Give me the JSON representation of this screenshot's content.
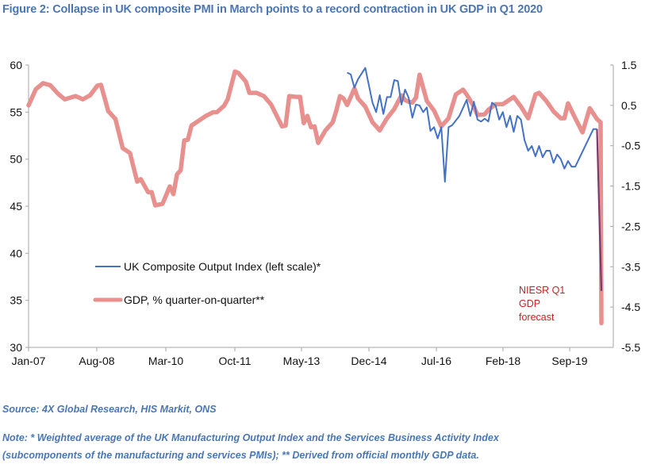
{
  "title": "Figure 2: Collapse in UK composite PMI in March points to a record contraction in UK GDP in Q1 2020",
  "source": "Source: 4X Global Research, HIS Markit, ONS",
  "note_line1": "Note: * Weighted average of the UK Manufacturing Output Index and the Services Business Activity Index",
  "note_line2": "(subcomponents of the manufacturing and services PMIs); ** Derived from official monthly GDP data.",
  "colors": {
    "pmi": "#4472c4",
    "gdp": "#e8908e",
    "overlap": "#7a3a6e",
    "annotation": "#cc1f1f",
    "text_blue": "#4a76b4",
    "axis": "#a6a6a6"
  },
  "chart_data": {
    "type": "line",
    "title": "Figure 2: Collapse in UK composite PMI in March points to a record contraction in UK GDP in Q1 2020",
    "xlabel": "",
    "ylabel_left": "",
    "ylabel_right": "",
    "x_start": "Jan-07",
    "x_end": "Mar-20",
    "x_ticks": [
      "Jan-07",
      "Aug-08",
      "Mar-10",
      "Oct-11",
      "May-13",
      "Dec-14",
      "Jul-16",
      "Feb-18",
      "Sep-19"
    ],
    "x_tick_months": [
      0,
      19,
      38,
      57,
      76,
      95,
      114,
      133,
      152
    ],
    "x_month_range": [
      0,
      160
    ],
    "ylim_left": [
      30,
      60
    ],
    "yticks_left": [
      30,
      35,
      40,
      45,
      50,
      55,
      60
    ],
    "ylim_right": [
      -5.5,
      1.5
    ],
    "yticks_right": [
      -5.5,
      -4.5,
      -3.5,
      -2.5,
      -1.5,
      -0.5,
      0.5,
      1.5
    ],
    "yticks_right_labels": [
      "-5.5",
      "-4.5",
      "-3.5",
      "-2.5",
      "-1.5",
      "-0.5",
      "0.5",
      "1.5"
    ],
    "legend_position": "lower-left",
    "annotation": [
      "NIESR Q1",
      "GDP",
      "forecast"
    ],
    "series": [
      {
        "name": "UK Composite Output Index (left scale)*",
        "axis": "left",
        "months": [
          88,
          89,
          90,
          91,
          93,
          95,
          96,
          97,
          98,
          99,
          100,
          101,
          102,
          103,
          104,
          105,
          106,
          107,
          108,
          109,
          110,
          111,
          112,
          113,
          114,
          115,
          116,
          117,
          119,
          121,
          122,
          123,
          124,
          125,
          126,
          127,
          128,
          129,
          130,
          131,
          132,
          133,
          134,
          135,
          136,
          137,
          138,
          139,
          140,
          141,
          142,
          143,
          144,
          145,
          146,
          147,
          148,
          149,
          150,
          151,
          156,
          157,
          158
        ],
        "values": [
          59.2,
          59.0,
          57.6,
          58.5,
          59.7,
          56.0,
          55.0,
          56.8,
          54.8,
          56.6,
          56.6,
          58.4,
          58.3,
          55.8,
          57.4,
          56.5,
          54.4,
          55.8,
          55.7,
          55.0,
          55.5,
          53.0,
          53.4,
          52.2,
          53.4,
          47.6,
          53.4,
          53.6,
          54.6,
          56.3,
          54.6,
          56.1,
          54.2,
          54.0,
          54.3,
          54.0,
          56.0,
          55.7,
          54.2,
          55.0,
          53.4,
          54.6,
          52.9,
          54.6,
          54.2,
          52.0,
          50.9,
          51.4,
          50.3,
          51.4,
          50.2,
          50.9,
          50.9,
          49.6,
          50.5,
          50.0,
          49.0,
          49.8,
          49.2,
          49.2,
          53.2,
          53.2,
          36.0
        ]
      },
      {
        "name": "GDP, % quarter-on-quarter**",
        "axis": "right",
        "months": [
          0,
          2,
          4,
          6,
          8,
          10,
          13,
          15,
          17,
          19,
          20,
          22,
          24,
          26,
          28,
          30,
          31,
          33,
          34,
          35,
          37,
          39,
          40,
          41,
          42,
          43,
          44,
          45,
          47,
          49,
          51,
          52,
          54,
          55,
          57,
          58,
          60,
          61,
          63,
          65,
          67,
          69,
          70,
          71,
          72,
          74,
          75,
          76,
          77,
          78,
          79,
          80,
          82,
          84,
          85,
          86,
          87,
          88,
          89,
          90,
          91,
          93,
          95,
          97,
          99,
          101,
          103,
          104,
          105,
          106,
          107,
          108,
          110,
          112,
          114,
          116,
          118,
          120,
          121,
          123,
          124,
          126,
          127,
          129,
          131,
          132,
          134,
          136,
          138,
          140,
          141,
          143,
          145,
          147,
          148,
          149,
          151,
          153,
          155,
          157,
          158
        ],
        "values": [
          0.5,
          0.9,
          1.05,
          1.0,
          0.8,
          0.65,
          0.73,
          0.65,
          0.75,
          0.99,
          1.01,
          0.36,
          0.16,
          -0.56,
          -0.68,
          -1.39,
          -1.33,
          -1.65,
          -1.65,
          -1.98,
          -1.94,
          -1.51,
          -1.7,
          -1.21,
          -1.11,
          -0.37,
          -0.35,
          0.0,
          0.12,
          0.24,
          0.33,
          0.33,
          0.49,
          0.65,
          1.34,
          1.3,
          1.09,
          0.81,
          0.81,
          0.73,
          0.52,
          0.16,
          -0.02,
          0.0,
          0.73,
          0.71,
          0.71,
          0.06,
          0.24,
          -0.04,
          -0.02,
          -0.43,
          -0.12,
          0.08,
          0.37,
          0.73,
          0.67,
          0.51,
          0.71,
          0.92,
          0.67,
          0.47,
          0.08,
          -0.12,
          0.18,
          0.41,
          0.75,
          0.63,
          0.59,
          0.57,
          0.69,
          1.26,
          0.61,
          0.37,
          -0.02,
          0.18,
          0.77,
          0.89,
          0.77,
          0.47,
          0.26,
          0.28,
          0.39,
          0.53,
          0.53,
          0.59,
          0.71,
          0.47,
          0.18,
          0.77,
          0.81,
          0.61,
          0.35,
          0.18,
          0.18,
          0.55,
          0.18,
          -0.17,
          0.43,
          0.16,
          0.08
        ]
      },
      {
        "name": "NIESR Q1 GDP forecast",
        "axis": "right",
        "months": [
          158
        ],
        "values": [
          -4.9
        ]
      }
    ]
  }
}
